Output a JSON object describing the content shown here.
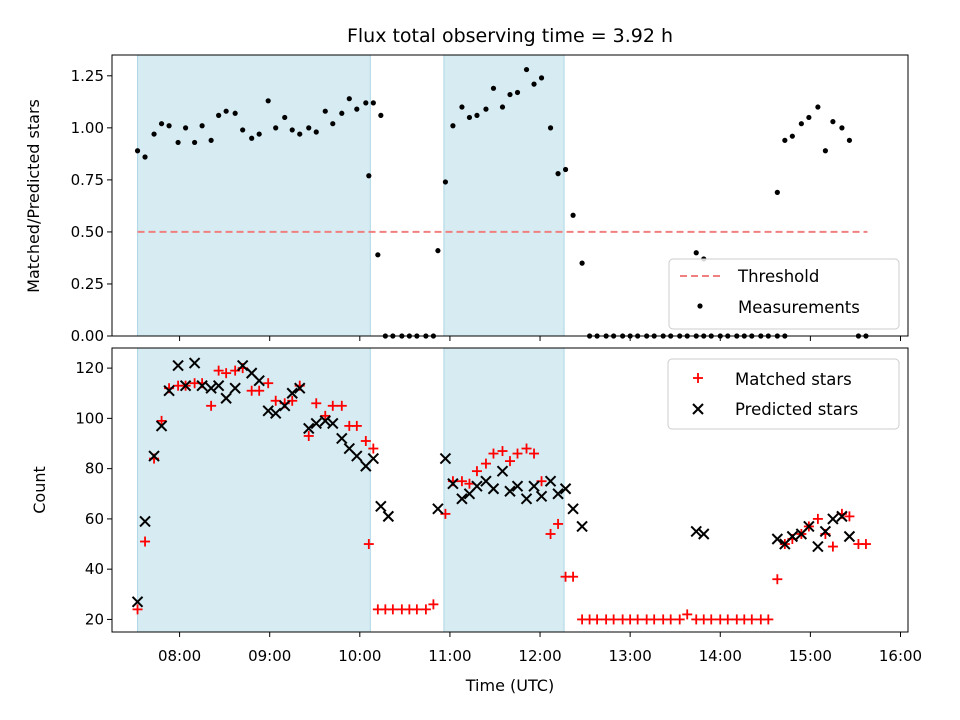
{
  "chart_data": [
    {
      "type": "scatter",
      "title": "Flux total observing time = 3.92 h",
      "ylabel": "Matched/Predicted stars",
      "xlabel": "",
      "xlim": [
        "07:15",
        "16:05"
      ],
      "ylim": [
        0,
        1.35
      ],
      "yticks": [
        "0.00",
        "0.25",
        "0.50",
        "0.75",
        "1.00",
        "1.25"
      ],
      "grid": false,
      "legend_position": "bottom-right",
      "shaded_intervals": [
        [
          "07:32",
          "10:07"
        ],
        [
          "10:56",
          "12:16"
        ]
      ],
      "threshold": {
        "name": "Threshold",
        "value": 0.5,
        "from": "07:32",
        "to": "15:38",
        "color": "#f08080"
      },
      "series": [
        {
          "name": "Measurements",
          "color": "#000000",
          "points": [
            [
              "07:32",
              0.89
            ],
            [
              "07:37",
              0.86
            ],
            [
              "07:43",
              0.97
            ],
            [
              "07:48",
              1.02
            ],
            [
              "07:53",
              1.01
            ],
            [
              "07:59",
              0.93
            ],
            [
              "08:04",
              1.0
            ],
            [
              "08:10",
              0.93
            ],
            [
              "08:15",
              1.01
            ],
            [
              "08:21",
              0.94
            ],
            [
              "08:26",
              1.06
            ],
            [
              "08:31",
              1.08
            ],
            [
              "08:37",
              1.07
            ],
            [
              "08:42",
              0.99
            ],
            [
              "08:48",
              0.95
            ],
            [
              "08:53",
              0.97
            ],
            [
              "08:59",
              1.13
            ],
            [
              "09:04",
              1.0
            ],
            [
              "09:10",
              1.05
            ],
            [
              "09:15",
              0.99
            ],
            [
              "09:20",
              0.97
            ],
            [
              "09:26",
              1.0
            ],
            [
              "09:31",
              0.98
            ],
            [
              "09:37",
              1.08
            ],
            [
              "09:42",
              1.02
            ],
            [
              "09:48",
              1.07
            ],
            [
              "09:53",
              1.14
            ],
            [
              "09:58",
              1.09
            ],
            [
              "10:04",
              1.12
            ],
            [
              "10:09",
              1.12
            ],
            [
              "10:14",
              1.06
            ],
            [
              "10:06",
              0.77
            ],
            [
              "10:12",
              0.39
            ],
            [
              "10:17",
              0.0
            ],
            [
              "10:22",
              0.0
            ],
            [
              "10:28",
              0.0
            ],
            [
              "10:33",
              0.0
            ],
            [
              "10:38",
              0.0
            ],
            [
              "10:44",
              0.0
            ],
            [
              "10:49",
              0.0
            ],
            [
              "10:52",
              0.41
            ],
            [
              "10:57",
              0.74
            ],
            [
              "11:02",
              1.01
            ],
            [
              "11:08",
              1.1
            ],
            [
              "11:13",
              1.05
            ],
            [
              "11:18",
              1.06
            ],
            [
              "11:24",
              1.09
            ],
            [
              "11:29",
              1.19
            ],
            [
              "11:35",
              1.1
            ],
            [
              "11:40",
              1.16
            ],
            [
              "11:45",
              1.17
            ],
            [
              "11:51",
              1.28
            ],
            [
              "11:56",
              1.21
            ],
            [
              "12:01",
              1.24
            ],
            [
              "12:07",
              1.0
            ],
            [
              "12:12",
              0.78
            ],
            [
              "12:17",
              0.8
            ],
            [
              "12:22",
              0.58
            ],
            [
              "12:28",
              0.35
            ],
            [
              "12:33",
              0.0
            ],
            [
              "12:38",
              0.0
            ],
            [
              "12:44",
              0.0
            ],
            [
              "12:49",
              0.0
            ],
            [
              "12:55",
              0.0
            ],
            [
              "13:00",
              0.0
            ],
            [
              "13:05",
              0.0
            ],
            [
              "13:11",
              0.0
            ],
            [
              "13:16",
              0.0
            ],
            [
              "13:22",
              0.0
            ],
            [
              "13:27",
              0.0
            ],
            [
              "13:33",
              0.0
            ],
            [
              "13:38",
              0.0
            ],
            [
              "13:44",
              0.0
            ],
            [
              "13:49",
              0.0
            ],
            [
              "13:54",
              0.0
            ],
            [
              "14:00",
              0.0
            ],
            [
              "14:05",
              0.0
            ],
            [
              "14:11",
              0.0
            ],
            [
              "14:16",
              0.0
            ],
            [
              "14:21",
              0.0
            ],
            [
              "14:27",
              0.0
            ],
            [
              "14:32",
              0.0
            ],
            [
              "14:38",
              0.0
            ],
            [
              "14:43",
              0.0
            ],
            [
              "13:44",
              0.4
            ],
            [
              "13:49",
              0.37
            ],
            [
              "14:38",
              0.69
            ],
            [
              "14:43",
              0.94
            ],
            [
              "14:48",
              0.96
            ],
            [
              "14:54",
              1.02
            ],
            [
              "14:59",
              1.05
            ],
            [
              "15:05",
              1.1
            ],
            [
              "15:10",
              0.89
            ],
            [
              "15:15",
              1.03
            ],
            [
              "15:21",
              1.0
            ],
            [
              "15:26",
              0.94
            ],
            [
              "15:32",
              0.0
            ],
            [
              "15:37",
              0.0
            ]
          ]
        }
      ]
    },
    {
      "type": "scatter",
      "title": "",
      "ylabel": "Count",
      "xlabel": "Time (UTC)",
      "xlim": [
        "07:15",
        "16:05"
      ],
      "ylim": [
        15,
        128
      ],
      "yticks": [
        "20",
        "40",
        "60",
        "80",
        "100",
        "120"
      ],
      "xticks": [
        "08:00",
        "09:00",
        "10:00",
        "11:00",
        "12:00",
        "13:00",
        "14:00",
        "15:00",
        "16:00"
      ],
      "grid": false,
      "legend_position": "top-right",
      "shaded_intervals": [
        [
          "07:32",
          "10:07"
        ],
        [
          "10:56",
          "12:16"
        ]
      ],
      "series": [
        {
          "name": "Matched stars",
          "marker": "plus",
          "color": "#ff0000",
          "points": [
            [
              "07:32",
              24
            ],
            [
              "07:37",
              51
            ],
            [
              "07:43",
              84
            ],
            [
              "07:48",
              99
            ],
            [
              "07:53",
              112
            ],
            [
              "07:59",
              113
            ],
            [
              "08:04",
              113
            ],
            [
              "08:10",
              114
            ],
            [
              "08:15",
              114
            ],
            [
              "08:21",
              105
            ],
            [
              "08:26",
              119
            ],
            [
              "08:31",
              118
            ],
            [
              "08:37",
              119
            ],
            [
              "08:42",
              120
            ],
            [
              "08:48",
              111
            ],
            [
              "08:53",
              111
            ],
            [
              "08:59",
              114
            ],
            [
              "09:04",
              107
            ],
            [
              "09:10",
              106
            ],
            [
              "09:15",
              107
            ],
            [
              "09:20",
              113
            ],
            [
              "09:26",
              93
            ],
            [
              "09:31",
              106
            ],
            [
              "09:37",
              101
            ],
            [
              "09:42",
              105
            ],
            [
              "09:48",
              105
            ],
            [
              "09:53",
              97
            ],
            [
              "09:58",
              97
            ],
            [
              "10:04",
              91
            ],
            [
              "10:09",
              88
            ],
            [
              "10:06",
              50
            ],
            [
              "10:12",
              24
            ],
            [
              "10:17",
              24
            ],
            [
              "10:22",
              24
            ],
            [
              "10:28",
              24
            ],
            [
              "10:33",
              24
            ],
            [
              "10:38",
              24
            ],
            [
              "10:44",
              24
            ],
            [
              "10:49",
              26
            ],
            [
              "10:57",
              62
            ],
            [
              "11:02",
              75
            ],
            [
              "11:08",
              75
            ],
            [
              "11:13",
              74
            ],
            [
              "11:18",
              79
            ],
            [
              "11:24",
              82
            ],
            [
              "11:29",
              86
            ],
            [
              "11:35",
              87
            ],
            [
              "11:40",
              83
            ],
            [
              "11:45",
              86
            ],
            [
              "11:51",
              88
            ],
            [
              "11:56",
              86
            ],
            [
              "12:01",
              75
            ],
            [
              "12:07",
              54
            ],
            [
              "12:12",
              58
            ],
            [
              "12:17",
              37
            ],
            [
              "12:22",
              37
            ],
            [
              "12:28",
              20
            ],
            [
              "12:33",
              20
            ],
            [
              "12:38",
              20
            ],
            [
              "12:44",
              20
            ],
            [
              "12:49",
              20
            ],
            [
              "12:55",
              20
            ],
            [
              "13:00",
              20
            ],
            [
              "13:05",
              20
            ],
            [
              "13:11",
              20
            ],
            [
              "13:16",
              20
            ],
            [
              "13:22",
              20
            ],
            [
              "13:27",
              20
            ],
            [
              "13:33",
              20
            ],
            [
              "13:38",
              22
            ],
            [
              "13:44",
              20
            ],
            [
              "13:49",
              20
            ],
            [
              "13:54",
              20
            ],
            [
              "14:00",
              20
            ],
            [
              "14:05",
              20
            ],
            [
              "14:11",
              20
            ],
            [
              "14:16",
              20
            ],
            [
              "14:21",
              20
            ],
            [
              "14:27",
              20
            ],
            [
              "14:32",
              20
            ],
            [
              "14:38",
              36
            ],
            [
              "14:43",
              50
            ],
            [
              "14:48",
              52
            ],
            [
              "14:54",
              54
            ],
            [
              "14:59",
              57
            ],
            [
              "15:05",
              60
            ],
            [
              "15:10",
              54
            ],
            [
              "15:15",
              49
            ],
            [
              "15:21",
              62
            ],
            [
              "15:26",
              61
            ],
            [
              "15:32",
              50
            ],
            [
              "15:37",
              50
            ]
          ]
        },
        {
          "name": "Predicted stars",
          "marker": "x",
          "color": "#000000",
          "points": [
            [
              "07:32",
              27
            ],
            [
              "07:37",
              59
            ],
            [
              "07:43",
              85
            ],
            [
              "07:48",
              97
            ],
            [
              "07:53",
              111
            ],
            [
              "07:59",
              121
            ],
            [
              "08:04",
              113
            ],
            [
              "08:10",
              122
            ],
            [
              "08:15",
              113
            ],
            [
              "08:21",
              112
            ],
            [
              "08:26",
              113
            ],
            [
              "08:31",
              108
            ],
            [
              "08:37",
              112
            ],
            [
              "08:42",
              121
            ],
            [
              "08:48",
              118
            ],
            [
              "08:53",
              115
            ],
            [
              "08:59",
              103
            ],
            [
              "09:04",
              102
            ],
            [
              "09:10",
              105
            ],
            [
              "09:15",
              110
            ],
            [
              "09:20",
              112
            ],
            [
              "09:26",
              96
            ],
            [
              "09:31",
              98
            ],
            [
              "09:37",
              99
            ],
            [
              "09:42",
              98
            ],
            [
              "09:48",
              92
            ],
            [
              "09:53",
              88
            ],
            [
              "09:58",
              85
            ],
            [
              "10:04",
              81
            ],
            [
              "10:09",
              84
            ],
            [
              "10:14",
              65
            ],
            [
              "10:19",
              61
            ],
            [
              "10:52",
              64
            ],
            [
              "10:57",
              84
            ],
            [
              "11:02",
              74
            ],
            [
              "11:08",
              68
            ],
            [
              "11:13",
              70
            ],
            [
              "11:18",
              73
            ],
            [
              "11:24",
              75
            ],
            [
              "11:29",
              72
            ],
            [
              "11:35",
              79
            ],
            [
              "11:40",
              71
            ],
            [
              "11:45",
              73
            ],
            [
              "11:51",
              68
            ],
            [
              "11:56",
              73
            ],
            [
              "12:01",
              69
            ],
            [
              "12:07",
              75
            ],
            [
              "12:12",
              70
            ],
            [
              "12:17",
              72
            ],
            [
              "12:22",
              64
            ],
            [
              "12:28",
              57
            ],
            [
              "13:44",
              55
            ],
            [
              "13:49",
              54
            ],
            [
              "14:38",
              52
            ],
            [
              "14:43",
              50
            ],
            [
              "14:48",
              53
            ],
            [
              "14:54",
              54
            ],
            [
              "14:59",
              57
            ],
            [
              "15:05",
              49
            ],
            [
              "15:10",
              55
            ],
            [
              "15:15",
              60
            ],
            [
              "15:21",
              61
            ],
            [
              "15:26",
              53
            ]
          ]
        }
      ]
    }
  ]
}
